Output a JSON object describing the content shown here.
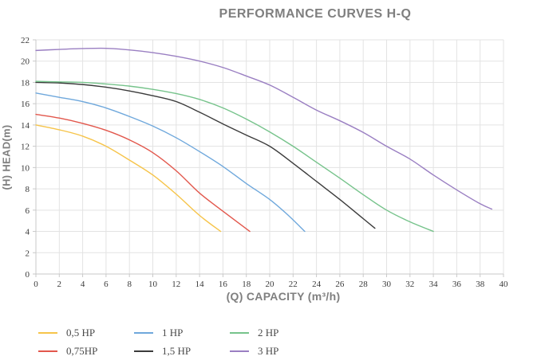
{
  "chart_data": {
    "type": "line",
    "title": "PERFORMANCE CURVES H-Q",
    "xlabel": "(Q) CAPACITY (m³/h)",
    "ylabel": "(H) HEAD(m)",
    "xlim": [
      0,
      40
    ],
    "ylim": [
      0,
      22
    ],
    "x_ticks": [
      0,
      2,
      4,
      6,
      8,
      10,
      12,
      14,
      16,
      18,
      20,
      22,
      24,
      26,
      28,
      30,
      32,
      34,
      36,
      38,
      40
    ],
    "y_ticks": [
      0,
      2,
      4,
      6,
      8,
      10,
      12,
      14,
      16,
      18,
      20,
      22
    ],
    "grid": true,
    "legend_position": "bottom-left",
    "series": [
      {
        "name": "0,5 HP",
        "color": "#F6C44A",
        "points": [
          [
            0,
            14
          ],
          [
            2,
            13.55
          ],
          [
            4,
            12.95
          ],
          [
            6,
            12.0
          ],
          [
            8,
            10.7
          ],
          [
            10,
            9.3
          ],
          [
            12,
            7.5
          ],
          [
            14,
            5.5
          ],
          [
            15.8,
            4.0
          ]
        ]
      },
      {
        "name": "0,75HP",
        "color": "#E2574C",
        "points": [
          [
            0,
            15
          ],
          [
            2,
            14.65
          ],
          [
            4,
            14.15
          ],
          [
            6,
            13.5
          ],
          [
            8,
            12.6
          ],
          [
            10,
            11.4
          ],
          [
            12,
            9.7
          ],
          [
            14,
            7.6
          ],
          [
            16,
            5.9
          ],
          [
            18.3,
            4.0
          ]
        ]
      },
      {
        "name": "1 HP",
        "color": "#6FA8DC",
        "points": [
          [
            0,
            17
          ],
          [
            2,
            16.6
          ],
          [
            4,
            16.2
          ],
          [
            6,
            15.6
          ],
          [
            8,
            14.8
          ],
          [
            10,
            13.9
          ],
          [
            12,
            12.8
          ],
          [
            14,
            11.5
          ],
          [
            16,
            10.1
          ],
          [
            18,
            8.5
          ],
          [
            20,
            7.0
          ],
          [
            21.5,
            5.6
          ],
          [
            23,
            4.0
          ]
        ]
      },
      {
        "name": "1,5 HP",
        "color": "#3B3B3B",
        "points": [
          [
            0,
            18
          ],
          [
            2,
            17.95
          ],
          [
            4,
            17.8
          ],
          [
            6,
            17.55
          ],
          [
            8,
            17.2
          ],
          [
            10,
            16.75
          ],
          [
            12,
            16.2
          ],
          [
            14,
            15.2
          ],
          [
            16,
            14.1
          ],
          [
            18,
            13.05
          ],
          [
            20,
            12.0
          ],
          [
            22,
            10.4
          ],
          [
            24,
            8.7
          ],
          [
            26,
            7.0
          ],
          [
            28,
            5.2
          ],
          [
            29,
            4.3
          ]
        ]
      },
      {
        "name": "2 HP",
        "color": "#76C38B",
        "points": [
          [
            0,
            18.1
          ],
          [
            2,
            18.05
          ],
          [
            4,
            18.0
          ],
          [
            6,
            17.85
          ],
          [
            8,
            17.65
          ],
          [
            10,
            17.35
          ],
          [
            12,
            16.95
          ],
          [
            14,
            16.4
          ],
          [
            16,
            15.6
          ],
          [
            18,
            14.55
          ],
          [
            20,
            13.35
          ],
          [
            22,
            12.0
          ],
          [
            24,
            10.5
          ],
          [
            26,
            9.0
          ],
          [
            28,
            7.45
          ],
          [
            30,
            6.0
          ],
          [
            32,
            4.9
          ],
          [
            34,
            4.0
          ]
        ]
      },
      {
        "name": "3 HP",
        "color": "#9A7FC2",
        "points": [
          [
            0,
            21.0
          ],
          [
            2,
            21.1
          ],
          [
            4,
            21.18
          ],
          [
            6,
            21.2
          ],
          [
            8,
            21.05
          ],
          [
            10,
            20.8
          ],
          [
            12,
            20.45
          ],
          [
            14,
            20.0
          ],
          [
            16,
            19.4
          ],
          [
            18,
            18.6
          ],
          [
            20,
            17.75
          ],
          [
            22,
            16.6
          ],
          [
            24,
            15.4
          ],
          [
            26,
            14.4
          ],
          [
            28,
            13.3
          ],
          [
            30,
            12.0
          ],
          [
            32,
            10.8
          ],
          [
            34,
            9.3
          ],
          [
            36,
            7.9
          ],
          [
            38,
            6.6
          ],
          [
            39,
            6.1
          ]
        ]
      }
    ]
  },
  "colors": {
    "title_text": "#7F7F7F",
    "axis_label_text": "#7F7F7F",
    "tick_text": "#3A3A3A",
    "grid_line": "#E3E3E3",
    "axis_line": "#C9C9C9",
    "legend_text": "#4A4A4A",
    "background": "#FFFFFF"
  }
}
